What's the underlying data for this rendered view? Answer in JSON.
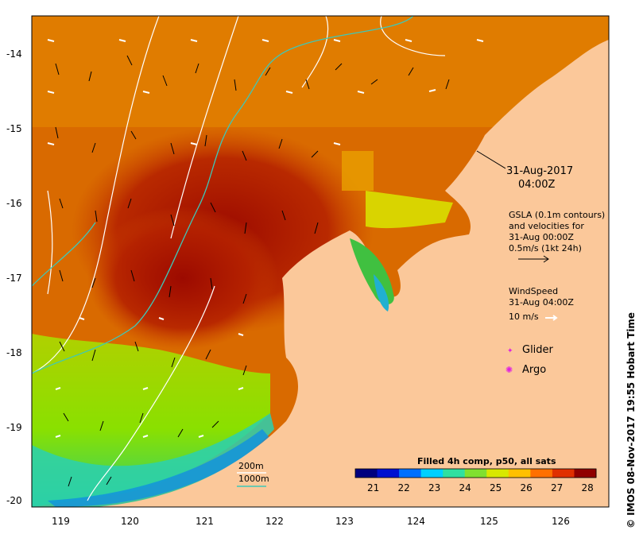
{
  "map": {
    "lon_ticks": [
      "119",
      "120",
      "121",
      "122",
      "123",
      "124",
      "125",
      "126"
    ],
    "lat_ticks": [
      "-14",
      "-15",
      "-16",
      "-17",
      "-18",
      "-19",
      "-20"
    ],
    "colors": {
      "land": "#fbc89a",
      "warm_sea": "#d96a00",
      "hot_sea": "#9c0a00",
      "cool_sea": "#a6e000",
      "coastal_sea": "#1fc0d0",
      "gsla_contour": "#ffffff",
      "isobath_200": "#ffffff",
      "isobath_1000": "#3ec8b8",
      "vector": "#000000",
      "wind_vector": "#ffffff"
    }
  },
  "annotations": {
    "datetime_line1": "31-Aug-2017",
    "datetime_line2": "04:00Z",
    "gsla_line1": "GSLA (0.1m contours)",
    "gsla_line2": "and velocities for",
    "gsla_line3": "31-Aug 00:00Z",
    "gsla_line4": "0.5m/s (1kt 24h)",
    "wind_line1": "WindSpeed",
    "wind_line2": "31-Aug 04:00Z",
    "wind_line3": "10 m/s",
    "glider": "Glider",
    "argo": "Argo",
    "isobath_200": "200m",
    "isobath_1000": "1000m"
  },
  "colorbar": {
    "title": "Filled 4h comp, p50, all sats",
    "ticks": [
      "21",
      "22",
      "23",
      "24",
      "25",
      "26",
      "27",
      "28"
    ],
    "colors": [
      "#00007f",
      "#0010d0",
      "#0070ff",
      "#00d0ff",
      "#30e0a0",
      "#80e030",
      "#d8e800",
      "#ffc000",
      "#ff7000",
      "#e03000",
      "#900000"
    ]
  },
  "credit": "© IMOS 08-Nov-2017 19:55 Hobart Time"
}
